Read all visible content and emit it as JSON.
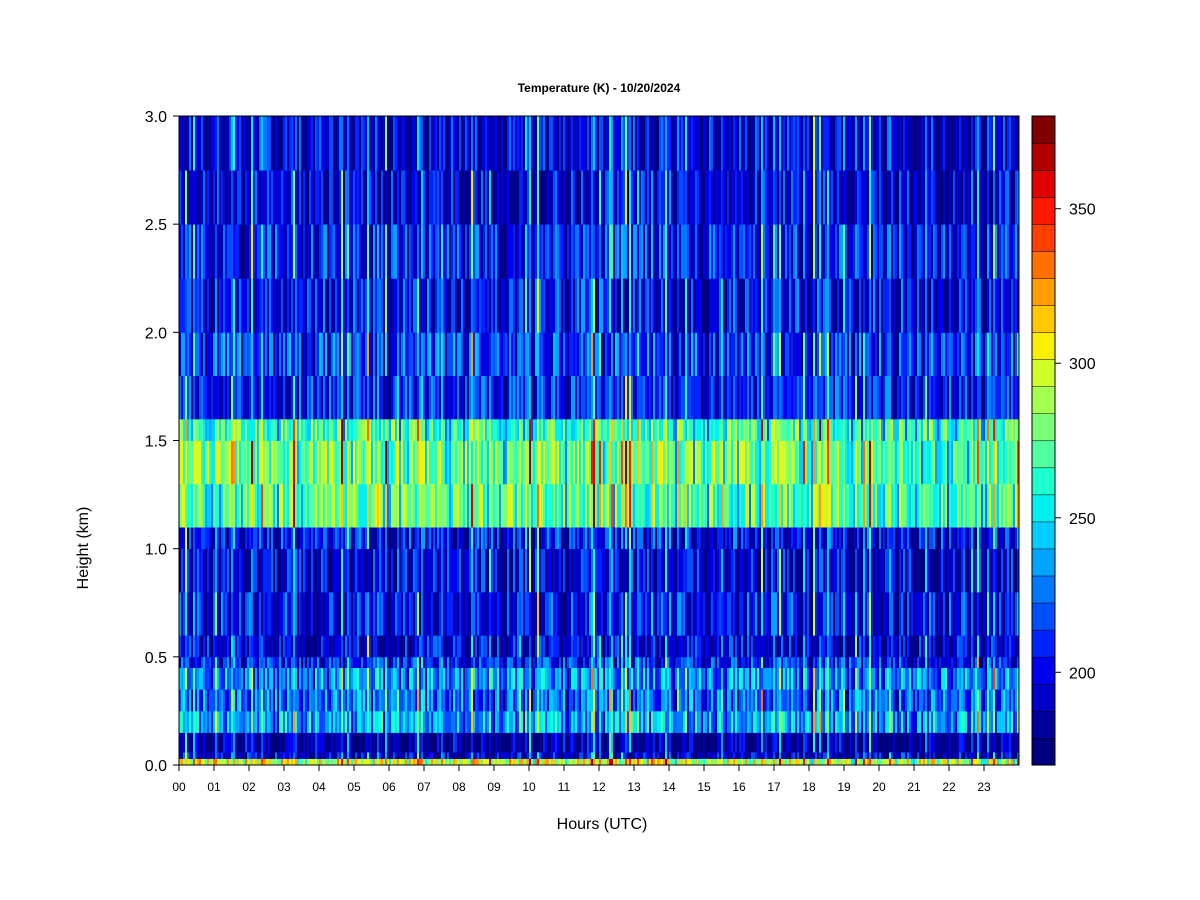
{
  "chart_data": {
    "type": "heatmap",
    "title": "Temperature (K) - 10/20/2024",
    "xlabel": "Hours (UTC)",
    "ylabel": "Height (km)",
    "x_ticks": [
      "00",
      "01",
      "02",
      "03",
      "04",
      "05",
      "06",
      "07",
      "08",
      "09",
      "10",
      "11",
      "12",
      "13",
      "14",
      "15",
      "16",
      "17",
      "18",
      "19",
      "20",
      "21",
      "22",
      "23"
    ],
    "xlim": [
      0,
      24
    ],
    "y_ticks": [
      "0.0",
      "0.5",
      "1.0",
      "1.5",
      "2.0",
      "2.5",
      "3.0"
    ],
    "ylim": [
      0,
      3
    ],
    "colorbar": {
      "ticks": [
        "200",
        "250",
        "300",
        "350"
      ],
      "range": [
        170,
        380
      ],
      "levels": 21,
      "colors": [
        "#00007f",
        "#00009e",
        "#0000c8",
        "#0000f0",
        "#0024ff",
        "#0050ff",
        "#0078ff",
        "#00a4ff",
        "#00ccff",
        "#00f0f0",
        "#1effd0",
        "#50ffa0",
        "#7aff78",
        "#a4ff50",
        "#d0ff28",
        "#f8f000",
        "#ffc800",
        "#ff9c00",
        "#ff7000",
        "#ff4000",
        "#ff1800",
        "#e00000",
        "#b00000",
        "#7f0000"
      ]
    },
    "height_bands_km": [
      0.0,
      0.03,
      0.06,
      0.15,
      0.25,
      0.35,
      0.45,
      0.5,
      0.6,
      0.8,
      1.0,
      1.1,
      1.3,
      1.5,
      1.6,
      1.8,
      2.0,
      2.25,
      2.5,
      2.75,
      3.0
    ],
    "band_mean_K": [
      300,
      195,
      185,
      240,
      225,
      235,
      210,
      200,
      205,
      200,
      205,
      275,
      280,
      270,
      210,
      215,
      205,
      210,
      200,
      200
    ]
  }
}
